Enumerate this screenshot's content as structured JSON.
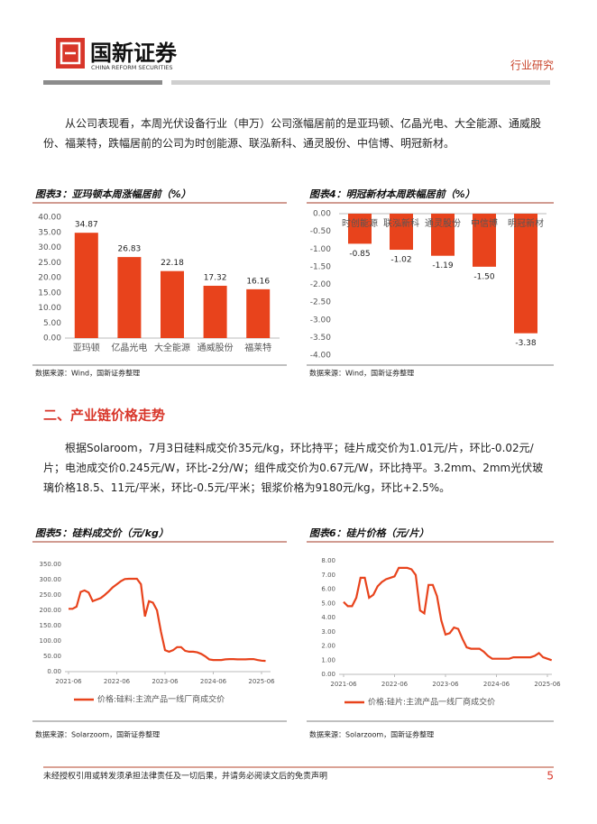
{
  "header": {
    "brand": "国新证券",
    "brand_en": "CHINA REFORM SECURITIES",
    "section": "行业研究"
  },
  "paragraphs": [
    "从公司表现看，本周光伏设备行业（申万）公司涨幅居前的是亚玛顿、亿晶光电、大全能源、通威股份、福莱特，跌幅居前的公司为时创能源、联泓新科、通灵股份、中信博、明冠新材。",
    "根据Solaroom，7月3日硅料成交价35元/kg，环比持平；硅片成交价为1.01元/片，环比-0.02元/片；电池成交价0.245元/W，环比-2分/W；组件成交价为0.67元/W，环比持平。3.2mm、2mm光伏玻璃价格18.5、11元/平米，环比-0.5元/平米；银浆价格为9180元/kg，环比+2.5%。"
  ],
  "heading": "二、产业链价格走势",
  "chart_data": [
    {
      "type": "bar",
      "title": "图表3：亚玛顿本周涨幅居前（%）",
      "source": "数据来源：Wind，国新证券整理",
      "categories": [
        "亚玛顿",
        "亿晶光电",
        "大全能源",
        "通威股份",
        "福莱特"
      ],
      "values": [
        34.87,
        26.83,
        22.18,
        17.32,
        16.16
      ],
      "color": "#e8431c",
      "ylim": [
        0,
        40
      ],
      "yticks": [
        {
          "value": 0,
          "label": "0.00"
        },
        {
          "value": 5,
          "label": "5.00"
        },
        {
          "value": 10,
          "label": "10.00"
        },
        {
          "value": 15,
          "label": "15.00"
        },
        {
          "value": 20,
          "label": "20.00"
        },
        {
          "value": 25,
          "label": "25.00"
        },
        {
          "value": 30,
          "label": "30.00"
        },
        {
          "value": 35,
          "label": "35.00"
        },
        {
          "value": 40,
          "label": "40.00"
        }
      ]
    },
    {
      "type": "bar",
      "title": "图表4：明冠新材本周跌幅居前（%）",
      "source": "数据来源：Wind，国新证券整理",
      "categories": [
        "时创能源",
        "联泓新科",
        "通灵股份",
        "中信博",
        "明冠新材"
      ],
      "values": [
        -0.85,
        -1.02,
        -1.19,
        -1.5,
        -3.38
      ],
      "value_labels": [
        "-0.85",
        "-1.02",
        "-1.19",
        "-1.50",
        "-3.38"
      ],
      "color": "#e8431c",
      "ylim": [
        -4,
        0
      ],
      "yticks": [
        {
          "value": 0,
          "label": "0.00"
        },
        {
          "value": -0.5,
          "label": "-0.50"
        },
        {
          "value": -1,
          "label": "-1.00"
        },
        {
          "value": -1.5,
          "label": "-1.50"
        },
        {
          "value": -2,
          "label": "-2.00"
        },
        {
          "value": -2.5,
          "label": "-2.50"
        },
        {
          "value": -3,
          "label": "-3.00"
        },
        {
          "value": -3.5,
          "label": "-3.50"
        },
        {
          "value": -4,
          "label": "-4.00"
        }
      ]
    },
    {
      "type": "line",
      "title": "图表5：硅料成交价（元/kg）",
      "source": "数据来源：Solarzoom，国新证券整理",
      "x": [
        "2021-06",
        "2021-07",
        "2021-08",
        "2021-09",
        "2021-10",
        "2021-11",
        "2021-12",
        "2022-01",
        "2022-02",
        "2022-03",
        "2022-04",
        "2022-05",
        "2022-06",
        "2022-07",
        "2022-08",
        "2022-09",
        "2022-10",
        "2022-11",
        "2022-12",
        "2023-01",
        "2023-02",
        "2023-03",
        "2023-04",
        "2023-05",
        "2023-06",
        "2023-07",
        "2023-08",
        "2023-09",
        "2023-10",
        "2023-11",
        "2023-12",
        "2024-01",
        "2024-02",
        "2024-03",
        "2024-04",
        "2024-05",
        "2024-06",
        "2024-07",
        "2024-08",
        "2024-09",
        "2024-10",
        "2024-11",
        "2024-12",
        "2025-01",
        "2025-02",
        "2025-03",
        "2025-04",
        "2025-05",
        "2025-06",
        "2025-07"
      ],
      "series": [
        {
          "name": "价格:硅料:主流产品一线厂商成交价",
          "color": "#e8431c",
          "values": [
            205,
            205,
            212,
            260,
            265,
            258,
            230,
            235,
            240,
            250,
            262,
            275,
            285,
            295,
            302,
            303,
            303,
            303,
            285,
            180,
            230,
            225,
            200,
            130,
            70,
            65,
            70,
            80,
            80,
            68,
            65,
            65,
            63,
            58,
            50,
            40,
            38,
            38,
            38,
            40,
            41,
            41,
            40,
            40,
            40,
            41,
            41,
            38,
            36,
            35
          ]
        }
      ],
      "ylim": [
        0,
        350
      ],
      "yticks": [
        {
          "value": 0,
          "label": "0.00"
        },
        {
          "value": 50,
          "label": "50.00"
        },
        {
          "value": 100,
          "label": "100.00"
        },
        {
          "value": 150,
          "label": "150.00"
        },
        {
          "value": 200,
          "label": "200.00"
        },
        {
          "value": 250,
          "label": "250.00"
        },
        {
          "value": 300,
          "label": "300.00"
        },
        {
          "value": 350,
          "label": "350.00"
        }
      ],
      "xticks": [
        "2021-06",
        "2022-06",
        "2023-06",
        "2024-06",
        "2025-06"
      ]
    },
    {
      "type": "line",
      "title": "图表6：硅片价格（元/片）",
      "source": "数据来源：Solarzoom，国新证券整理",
      "x": [
        "2021-06",
        "2021-07",
        "2021-08",
        "2021-09",
        "2021-10",
        "2021-11",
        "2021-12",
        "2022-01",
        "2022-02",
        "2022-03",
        "2022-04",
        "2022-05",
        "2022-06",
        "2022-07",
        "2022-08",
        "2022-09",
        "2022-10",
        "2022-11",
        "2022-12",
        "2023-01",
        "2023-02",
        "2023-03",
        "2023-04",
        "2023-05",
        "2023-06",
        "2023-07",
        "2023-08",
        "2023-09",
        "2023-10",
        "2023-11",
        "2023-12",
        "2024-01",
        "2024-02",
        "2024-03",
        "2024-04",
        "2024-05",
        "2024-06",
        "2024-07",
        "2024-08",
        "2024-09",
        "2024-10",
        "2024-11",
        "2024-12",
        "2025-01",
        "2025-02",
        "2025-03",
        "2025-04",
        "2025-05",
        "2025-06",
        "2025-07"
      ],
      "series": [
        {
          "name": "价格:硅片:主流产品一线厂商成交价",
          "color": "#e8431c",
          "values": [
            5.1,
            4.8,
            4.8,
            5.4,
            6.8,
            6.8,
            5.4,
            5.6,
            6.2,
            6.5,
            6.7,
            6.8,
            6.9,
            7.5,
            7.5,
            7.5,
            7.4,
            7.0,
            4.5,
            4.3,
            6.3,
            6.3,
            5.5,
            3.8,
            2.8,
            2.9,
            3.3,
            3.2,
            2.5,
            1.9,
            1.8,
            1.8,
            1.8,
            1.6,
            1.3,
            1.1,
            1.1,
            1.1,
            1.1,
            1.1,
            1.2,
            1.2,
            1.2,
            1.2,
            1.2,
            1.3,
            1.5,
            1.2,
            1.1,
            1.0
          ]
        }
      ],
      "ylim": [
        0,
        8
      ],
      "yticks": [
        {
          "value": 0,
          "label": "0.00"
        },
        {
          "value": 1,
          "label": "1.00"
        },
        {
          "value": 2,
          "label": "2.00"
        },
        {
          "value": 3,
          "label": "3.00"
        },
        {
          "value": 4,
          "label": "4.00"
        },
        {
          "value": 5,
          "label": "5.00"
        },
        {
          "value": 6,
          "label": "6.00"
        },
        {
          "value": 7,
          "label": "7.00"
        },
        {
          "value": 8,
          "label": "8.00"
        }
      ],
      "xticks": [
        "2021-06",
        "2022-06",
        "2023-06",
        "2024-06",
        "2025-06"
      ]
    }
  ],
  "footer": {
    "disclaimer": "未经授权引用或转发须承担法律责任及一切后果，并请务必阅读文后的免责声明",
    "page": "5"
  }
}
